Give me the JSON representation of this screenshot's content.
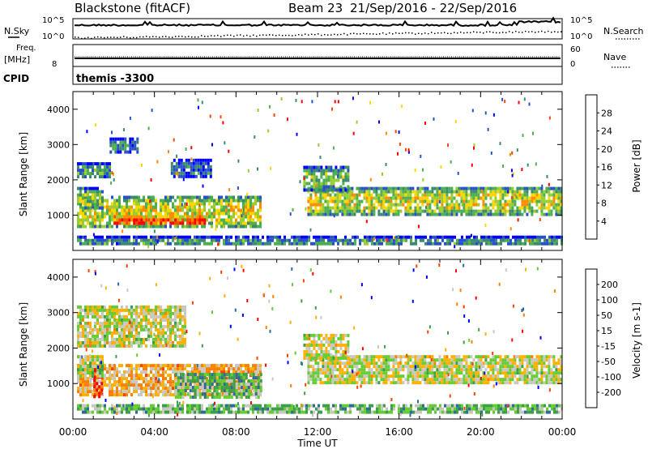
{
  "header": {
    "station": "Blackstone (fitACF)",
    "beam": "Beam 23",
    "dates": "21/Sep/2016 - 22/Sep/2016"
  },
  "strips": {
    "nsky_label": "N.Sky",
    "nsearch_label": "N.Search",
    "freq_label": "Freq.",
    "freq_unit": "[MHz]",
    "nave_label": "Nave",
    "cpid_label": "CPID",
    "cpid_value": "themis -3300",
    "nsky_ticks": [
      "10^5",
      "10^0"
    ],
    "freq_ticks": [
      "8"
    ],
    "nave_ticks": [
      "60",
      "0"
    ]
  },
  "chart_data": [
    {
      "type": "heatmap",
      "name": "power",
      "ylabel": "Slant Range [km]",
      "xlabel": "Time UT",
      "x_ticks": [
        "00:00",
        "04:00",
        "08:00",
        "12:00",
        "16:00",
        "20:00",
        "00:00"
      ],
      "y_ticks": [
        "1000",
        "2000",
        "3000",
        "4000"
      ],
      "ylim": [
        0,
        4500
      ],
      "xlim_hours": [
        0,
        24
      ],
      "colorbar_label": "Power [dB]",
      "colorbar_ticks": [
        "4",
        "8",
        "12",
        "16",
        "20",
        "24",
        "28"
      ],
      "colors": [
        "#0000ff",
        "#2850c8",
        "#3c8a6e",
        "#4caf50",
        "#9acd32",
        "#ffd700",
        "#ff8c00",
        "#ff4500",
        "#ff0000"
      ],
      "regions": [
        {
          "t0": 0.2,
          "t1": 9.2,
          "r0": 650,
          "r1": 1550,
          "level": 0.55
        },
        {
          "t0": 2.0,
          "t1": 6.5,
          "r0": 750,
          "r1": 1000,
          "level": 0.9
        },
        {
          "t0": 0.2,
          "t1": 1.5,
          "r0": 1200,
          "r1": 1800,
          "level": 0.45
        },
        {
          "t0": 0.2,
          "t1": 1.8,
          "r0": 2100,
          "r1": 2500,
          "level": 0.35
        },
        {
          "t0": 1.8,
          "t1": 3.2,
          "r0": 2800,
          "r1": 3200,
          "level": 0.25
        },
        {
          "t0": 4.8,
          "t1": 6.8,
          "r0": 2100,
          "r1": 2600,
          "level": 0.2
        },
        {
          "t0": 11.5,
          "t1": 24.0,
          "r0": 1050,
          "r1": 1800,
          "level": 0.55
        },
        {
          "t0": 11.3,
          "t1": 13.5,
          "r0": 1700,
          "r1": 2400,
          "level": 0.4
        },
        {
          "t0": 0.2,
          "t1": 24.0,
          "r0": 180,
          "r1": 420,
          "level": 0.3
        }
      ]
    },
    {
      "type": "heatmap",
      "name": "velocity",
      "ylabel": "Slant Range [km]",
      "xlabel": "Time UT",
      "x_ticks": [
        "00:00",
        "04:00",
        "08:00",
        "12:00",
        "16:00",
        "20:00",
        "00:00"
      ],
      "y_ticks": [
        "1000",
        "2000",
        "3000",
        "4000"
      ],
      "ylim": [
        0,
        4500
      ],
      "xlim_hours": [
        0,
        24
      ],
      "colorbar_label": "Velocity [m s-1]",
      "colorbar_ticks": [
        "200",
        "100",
        "50",
        "15",
        "-15",
        "-50",
        "-100",
        "-200"
      ],
      "colors": [
        "#0000ff",
        "#2f6a9a",
        "#3ca04a",
        "#66cc33",
        "#c8c8c0",
        "#ffb000",
        "#ff8000",
        "#ff4000",
        "#ff0000"
      ],
      "regions": [
        {
          "t0": 0.2,
          "t1": 9.2,
          "r0": 650,
          "r1": 1550,
          "level": 0.62
        },
        {
          "t0": 5.0,
          "t1": 9.2,
          "r0": 650,
          "r1": 1300,
          "level": 0.33
        },
        {
          "t0": 1.0,
          "t1": 1.4,
          "r0": 650,
          "r1": 1500,
          "level": 0.9
        },
        {
          "t0": 0.2,
          "t1": 1.5,
          "r0": 1200,
          "r1": 1800,
          "level": 0.48
        },
        {
          "t0": 0.2,
          "t1": 5.5,
          "r0": 2100,
          "r1": 3200,
          "level": 0.5
        },
        {
          "t0": 11.5,
          "t1": 24.0,
          "r0": 1050,
          "r1": 1800,
          "level": 0.5
        },
        {
          "t0": 11.3,
          "t1": 13.5,
          "r0": 1700,
          "r1": 2400,
          "level": 0.5
        },
        {
          "t0": 0.2,
          "t1": 24.0,
          "r0": 180,
          "r1": 420,
          "level": 0.35
        }
      ]
    }
  ]
}
